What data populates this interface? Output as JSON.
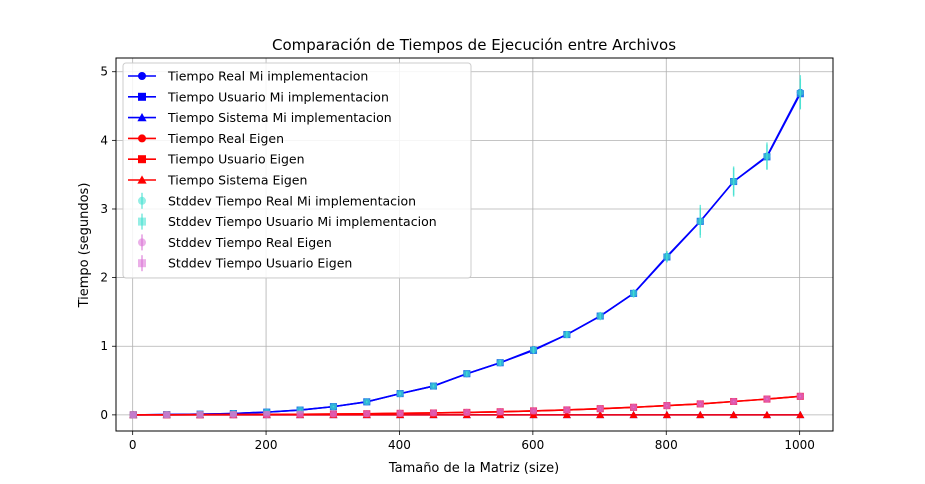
{
  "chart_data": {
    "type": "line",
    "title": "Comparación de Tiempos de Ejecución entre Archivos",
    "xlabel": "Tamaño de la Matriz (size)",
    "ylabel": "Tiempo (segundos)",
    "xlim": [
      -25,
      1050
    ],
    "ylim": [
      -0.235,
      5.2
    ],
    "xticks": [
      0,
      200,
      400,
      600,
      800,
      1000
    ],
    "yticks": [
      0,
      1,
      2,
      3,
      4,
      5
    ],
    "grid": true,
    "legend_position": "top-left",
    "x": [
      1,
      51,
      101,
      151,
      201,
      251,
      301,
      351,
      401,
      451,
      501,
      551,
      601,
      651,
      701,
      751,
      801,
      851,
      901,
      951,
      1001
    ],
    "series": [
      {
        "name": "Tiempo Real Mi implementacion",
        "color": "#0000ff",
        "marker": "circle",
        "values": [
          0.0,
          0.005,
          0.01,
          0.02,
          0.04,
          0.07,
          0.12,
          0.19,
          0.31,
          0.42,
          0.6,
          0.76,
          0.95,
          1.17,
          1.44,
          1.77,
          2.31,
          2.82,
          3.4,
          3.77,
          4.7
        ]
      },
      {
        "name": "Tiempo Usuario Mi implementacion",
        "color": "#0000ff",
        "marker": "square",
        "values": [
          0.0,
          0.005,
          0.01,
          0.02,
          0.04,
          0.07,
          0.12,
          0.19,
          0.31,
          0.42,
          0.6,
          0.76,
          0.94,
          1.17,
          1.44,
          1.77,
          2.3,
          2.82,
          3.4,
          3.76,
          4.68
        ]
      },
      {
        "name": "Tiempo Sistema Mi implementacion",
        "color": "#0000ff",
        "marker": "triangle",
        "values": [
          0.0,
          0.0,
          0.0,
          0.0,
          0.0,
          0.0,
          0.0,
          0.0,
          0.0,
          0.0,
          0.0,
          0.0,
          0.0,
          0.0,
          0.0,
          0.0,
          0.0,
          0.0,
          0.0,
          0.0,
          0.0
        ]
      },
      {
        "name": "Tiempo Real Eigen",
        "color": "#ff0000",
        "marker": "circle",
        "values": [
          0.0,
          0.001,
          0.002,
          0.004,
          0.006,
          0.009,
          0.012,
          0.016,
          0.022,
          0.028,
          0.036,
          0.045,
          0.058,
          0.072,
          0.09,
          0.11,
          0.135,
          0.16,
          0.195,
          0.23,
          0.27
        ]
      },
      {
        "name": "Tiempo Usuario Eigen",
        "color": "#ff0000",
        "marker": "square",
        "values": [
          0.0,
          0.001,
          0.002,
          0.004,
          0.006,
          0.009,
          0.012,
          0.016,
          0.022,
          0.028,
          0.036,
          0.045,
          0.058,
          0.072,
          0.09,
          0.11,
          0.135,
          0.16,
          0.195,
          0.23,
          0.27
        ]
      },
      {
        "name": "Tiempo Sistema Eigen",
        "color": "#ff0000",
        "marker": "triangle",
        "values": [
          0.0,
          0.0,
          0.0,
          0.0,
          0.0,
          0.0,
          0.0,
          0.0,
          0.0,
          0.0,
          0.0,
          0.0,
          0.0,
          0.0,
          0.0,
          0.0,
          0.0,
          0.0,
          0.0,
          0.0,
          0.0
        ]
      }
    ],
    "errorbars": [
      {
        "name": "Stddev Tiempo Real Mi implementacion",
        "color": "#40e0d0",
        "marker": "circle",
        "of_series": 0,
        "err": [
          0.003,
          0.003,
          0.004,
          0.005,
          0.006,
          0.008,
          0.01,
          0.015,
          0.02,
          0.02,
          0.03,
          0.04,
          0.05,
          0.05,
          0.06,
          0.06,
          0.08,
          0.24,
          0.22,
          0.2,
          0.25
        ]
      },
      {
        "name": "Stddev Tiempo Usuario Mi implementacion",
        "color": "#40e0d0",
        "marker": "square",
        "of_series": 1,
        "err": [
          0.003,
          0.003,
          0.004,
          0.005,
          0.006,
          0.008,
          0.01,
          0.015,
          0.02,
          0.02,
          0.03,
          0.04,
          0.05,
          0.05,
          0.06,
          0.06,
          0.08,
          0.2,
          0.2,
          0.18,
          0.22
        ]
      },
      {
        "name": "Stddev Tiempo Real Eigen",
        "color": "#da70d6",
        "marker": "circle",
        "of_series": 3,
        "err": [
          0.002,
          0.002,
          0.002,
          0.002,
          0.003,
          0.003,
          0.003,
          0.003,
          0.004,
          0.004,
          0.005,
          0.005,
          0.006,
          0.006,
          0.007,
          0.008,
          0.009,
          0.01,
          0.01,
          0.012,
          0.012
        ]
      },
      {
        "name": "Stddev Tiempo Usuario Eigen",
        "color": "#da70d6",
        "marker": "square",
        "of_series": 4,
        "err": [
          0.002,
          0.002,
          0.002,
          0.002,
          0.003,
          0.003,
          0.003,
          0.003,
          0.004,
          0.004,
          0.005,
          0.005,
          0.006,
          0.006,
          0.007,
          0.008,
          0.009,
          0.01,
          0.01,
          0.012,
          0.012
        ]
      }
    ]
  }
}
